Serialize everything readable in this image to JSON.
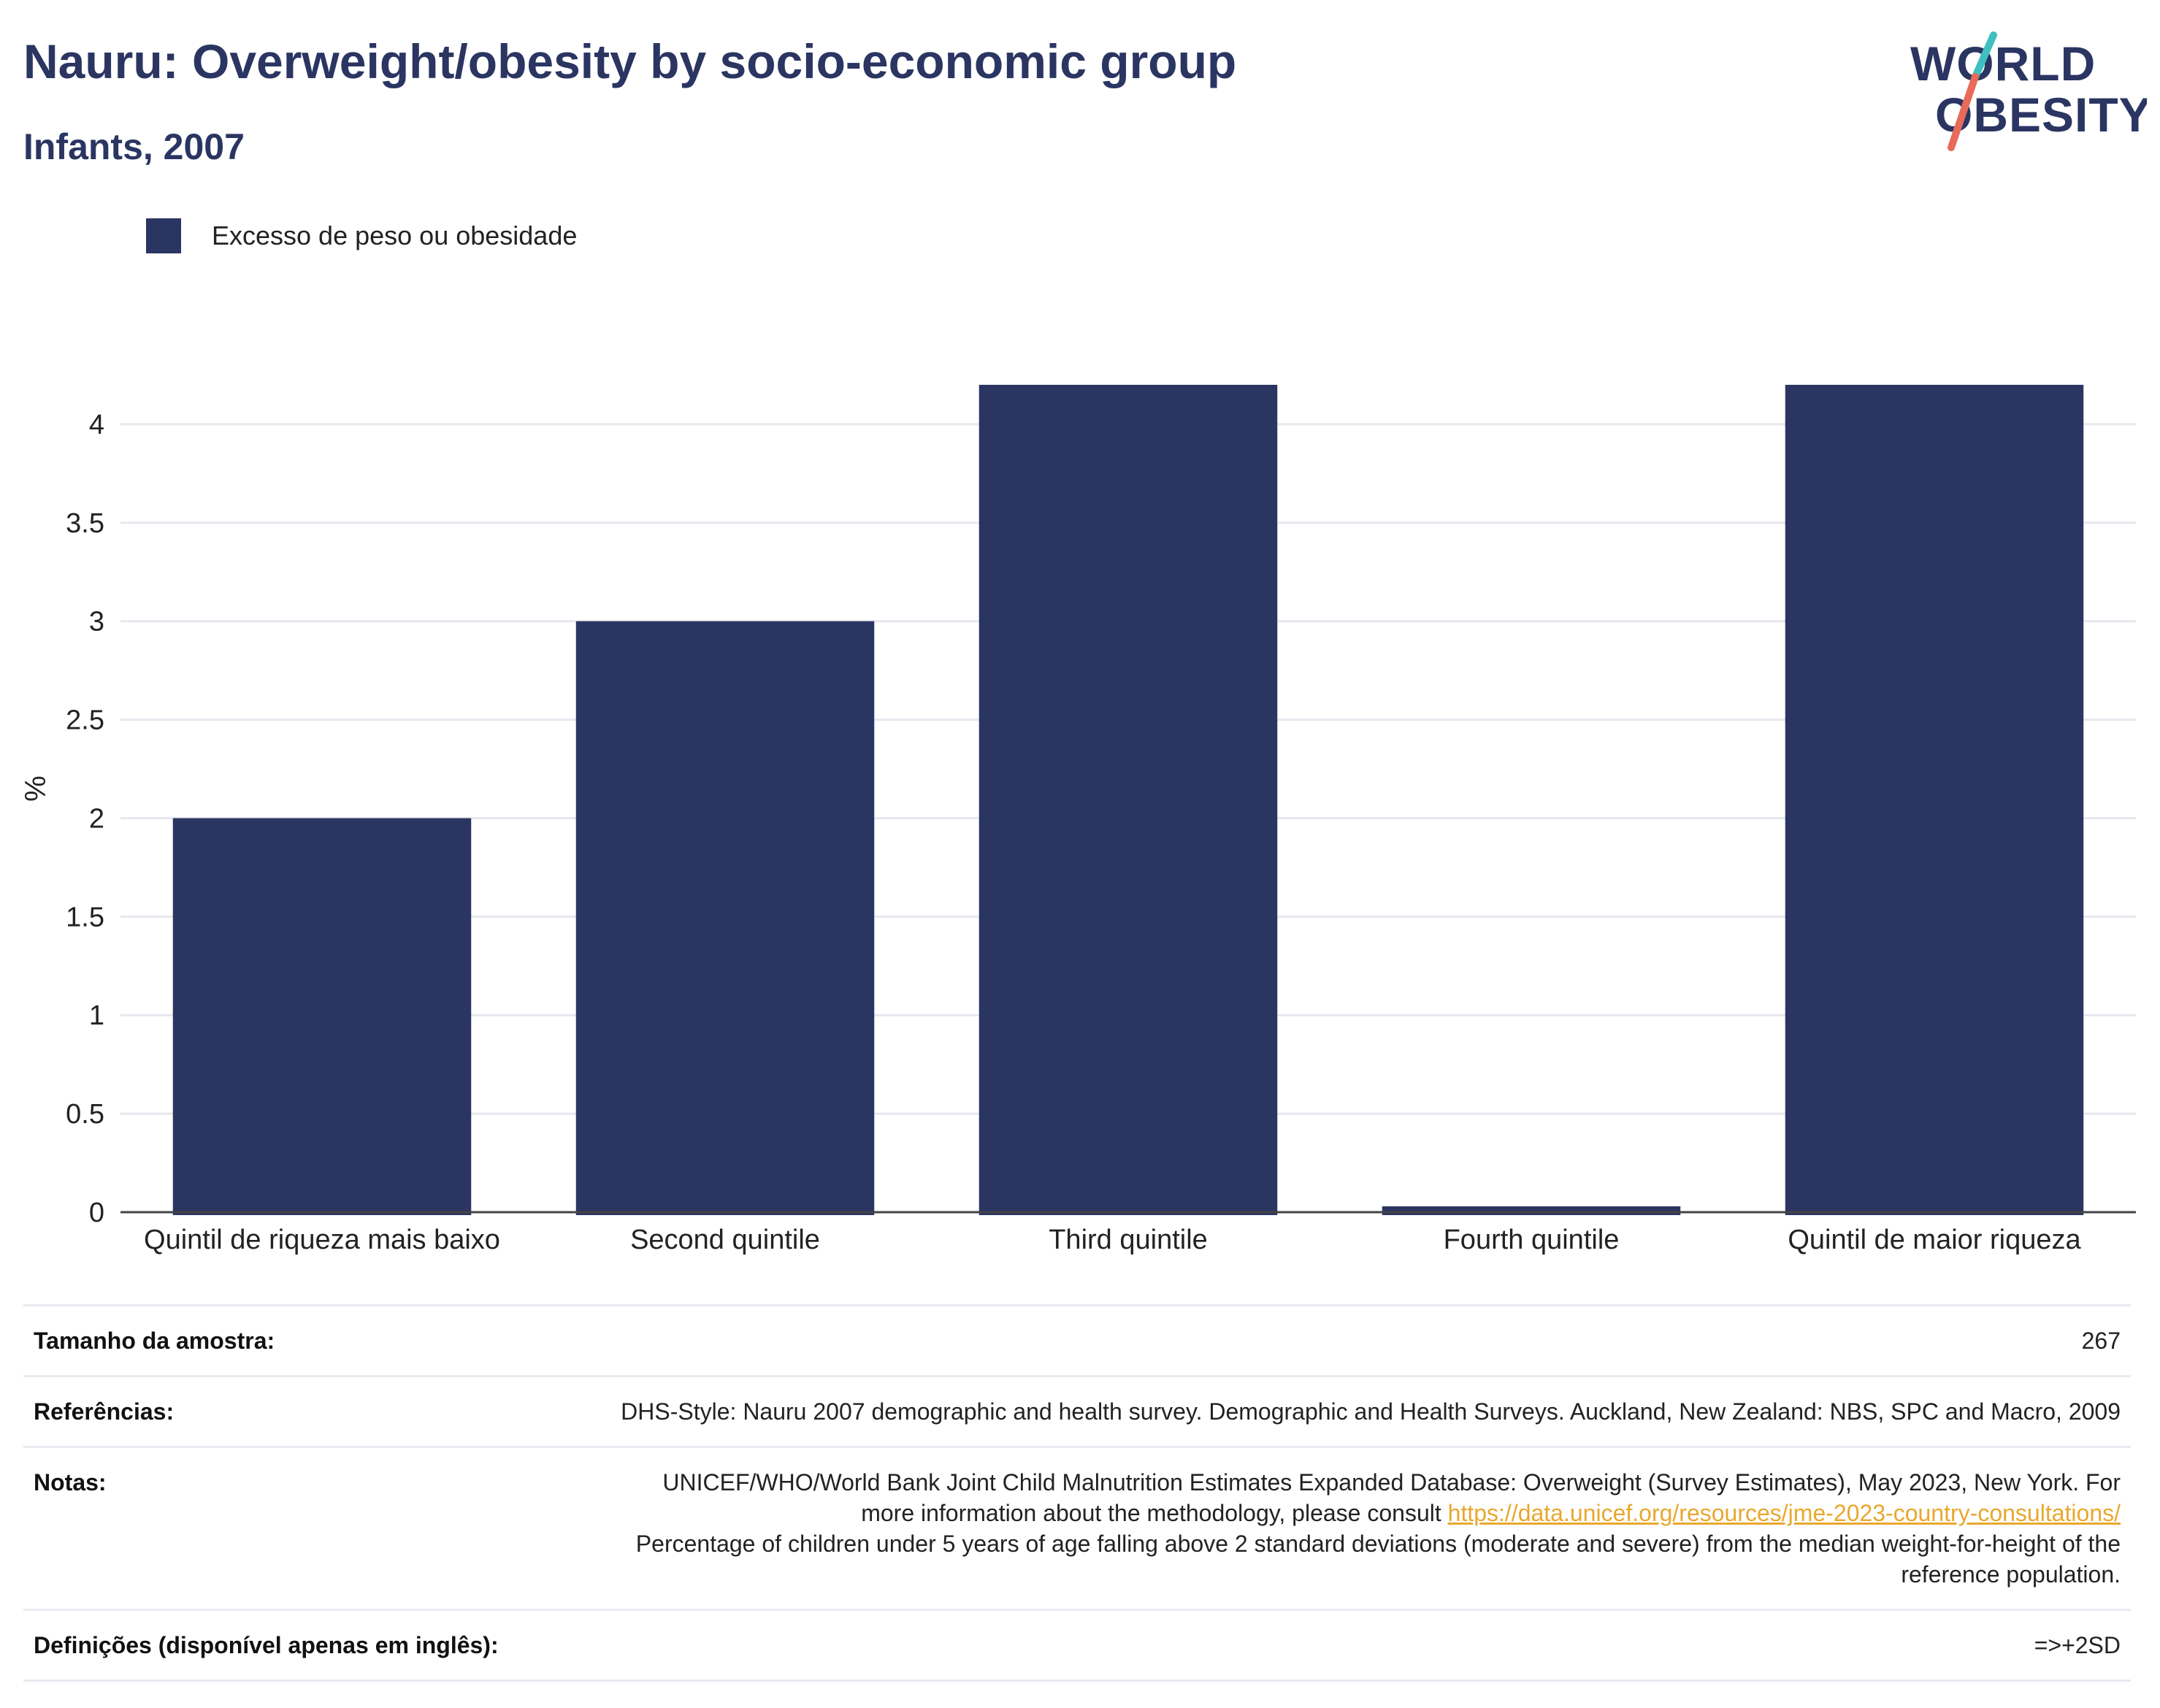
{
  "header": {
    "title": "Nauru: Overweight/obesity by socio-economic group",
    "subtitle": "Infants, 2007"
  },
  "logo": {
    "line1": "WORLD",
    "line2": "OBESITY",
    "colors": {
      "text": "#2b3562",
      "stroke_top": "#3fbfbf",
      "stroke_bottom": "#e86a5a"
    }
  },
  "legend": {
    "label": "Excesso de peso ou obesidade",
    "color": "#2b3562"
  },
  "chart_data": {
    "type": "bar",
    "categories": [
      "Quintil de riqueza mais baixo",
      "Second quintile",
      "Third quintile",
      "Fourth quintile",
      "Quintil de maior riqueza"
    ],
    "series": [
      {
        "name": "Excesso de peso ou obesidade",
        "values": [
          2.0,
          3.0,
          4.2,
          0.0,
          4.2
        ],
        "color": "#2b3562"
      }
    ],
    "ylabel": "%",
    "xlabel": "",
    "ylim": [
      0,
      4.3
    ],
    "yticks": [
      0,
      0.5,
      1,
      1.5,
      2,
      2.5,
      3,
      3.5,
      4
    ],
    "ytick_labels": [
      "0",
      "0.5",
      "1",
      "1.5",
      "2",
      "2.5",
      "3",
      "3.5",
      "4"
    ],
    "grid": true,
    "legend_position": "top-left"
  },
  "info": {
    "sample_label": "Tamanho da amostra:",
    "sample_value": "267",
    "references_label": "Referências:",
    "references_value": "DHS-Style: Nauru 2007 demographic and health survey. Demographic and Health Surveys. Auckland, New Zealand: NBS, SPC and Macro, 2009",
    "notes_label": "Notas:",
    "notes_text1": "UNICEF/WHO/World Bank Joint Child Malnutrition Estimates Expanded Database: Overweight (Survey Estimates), May 2023, New York. For more information about the methodology, please consult ",
    "notes_link": "https://data.unicef.org/resources/jme-2023-country-consultations/",
    "notes_text2": "Percentage of children under 5 years of age falling above 2 standard deviations (moderate and severe) from the median weight-for-height of the reference population.",
    "definitions_label": "Definições (disponível apenas em inglês):",
    "definitions_value": "=>+2SD"
  }
}
